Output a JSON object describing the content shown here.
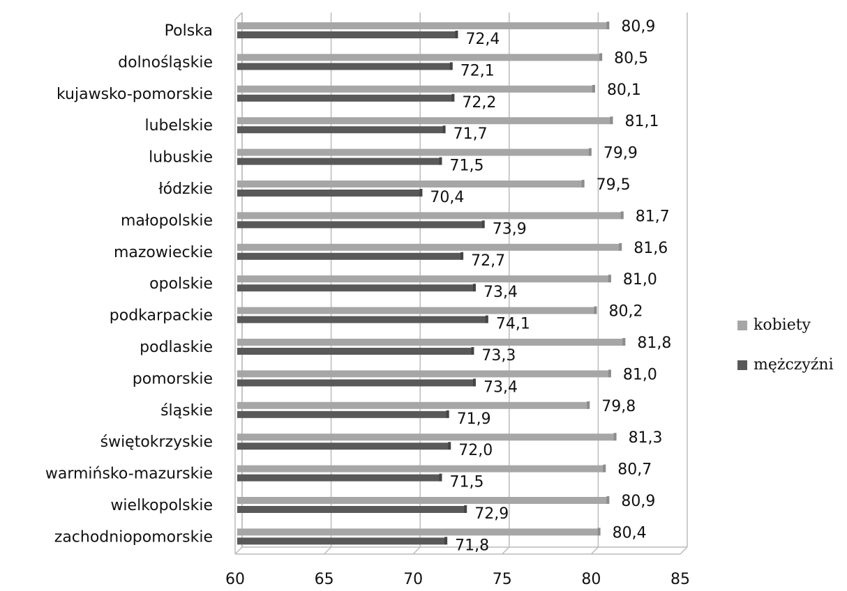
{
  "chart_data": {
    "type": "bar",
    "orientation": "horizontal",
    "categories": [
      "Polska",
      "dolnośląskie",
      "kujawsko-pomorskie",
      "lubelskie",
      "lubuskie",
      "łódzkie",
      "małopolskie",
      "mazowieckie",
      "opolskie",
      "podkarpackie",
      "podlaskie",
      "pomorskie",
      "śląskie",
      "świętokrzyskie",
      "warmińsko-mazurskie",
      "wielkopolskie",
      "zachodniopomorskie"
    ],
    "series": [
      {
        "name": "kobiety",
        "color": "#a6a6a6",
        "values": [
          80.9,
          80.5,
          80.1,
          81.1,
          79.9,
          79.5,
          81.7,
          81.6,
          81.0,
          80.2,
          81.8,
          81.0,
          79.8,
          81.3,
          80.7,
          80.9,
          80.4
        ],
        "value_labels": [
          "80,9",
          "80,5",
          "80,1",
          "81,1",
          "79,9",
          "79,5",
          "81,7",
          "81,6",
          "81,0",
          "80,2",
          "81,8",
          "81,0",
          "79,8",
          "81,3",
          "80,7",
          "80,9",
          "80,4"
        ]
      },
      {
        "name": "mężczyźni",
        "color": "#595959",
        "values": [
          72.4,
          72.1,
          72.2,
          71.7,
          71.5,
          70.4,
          73.9,
          72.7,
          73.4,
          74.1,
          73.3,
          73.4,
          71.9,
          72.0,
          71.5,
          72.9,
          71.8
        ],
        "value_labels": [
          "72,4",
          "72,1",
          "72,2",
          "71,7",
          "71,5",
          "70,4",
          "73,9",
          "72,7",
          "73,4",
          "74,1",
          "73,3",
          "73,4",
          "71,9",
          "72,0",
          "71,5",
          "72,9",
          "71,8"
        ]
      }
    ],
    "xlim": [
      60,
      85
    ],
    "xticks": [
      60,
      65,
      70,
      75,
      80,
      85
    ],
    "grid": true,
    "legend": "right"
  }
}
